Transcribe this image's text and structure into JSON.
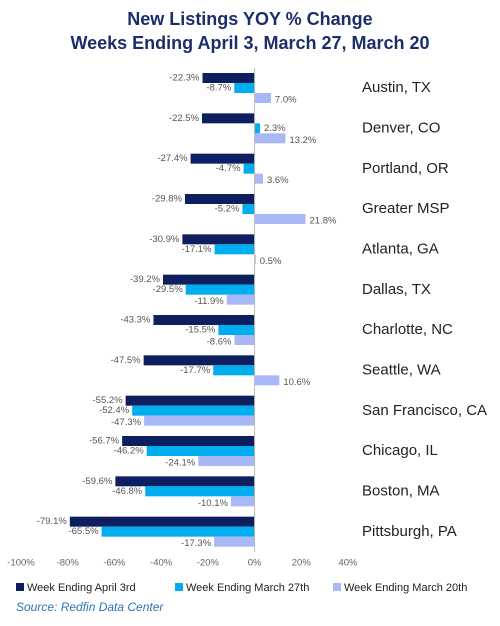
{
  "chart_data": {
    "type": "bar",
    "orientation": "horizontal",
    "title": "New Listings YOY % Change",
    "subtitle": "Weeks Ending April 3, March 27, March 20",
    "source": "Source: Redfin Data Center",
    "categories": [
      "Austin, TX",
      "Denver, CO",
      "Portland, OR",
      "Greater MSP",
      "Atlanta, GA",
      "Dallas, TX",
      "Charlotte, NC",
      "Seattle, WA",
      "San Francisco, CA",
      "Chicago, IL",
      "Boston, MA",
      "Pittsburgh, PA"
    ],
    "series": [
      {
        "name": "Week Ending April 3rd",
        "color": "#0d1f5e",
        "values": [
          -22.3,
          -22.5,
          -27.4,
          -29.8,
          -30.9,
          -39.2,
          -43.3,
          -47.5,
          -55.2,
          -56.7,
          -59.6,
          -79.1
        ],
        "value_labels": [
          "-22.3%",
          "-22.5%",
          "-27.4%",
          "-29.8%",
          "-30.9%",
          "-39.2%",
          "-43.3%",
          "-47.5%",
          "-55.2%",
          "-56.7%",
          "-59.6%",
          "-79.1%"
        ]
      },
      {
        "name": "Week Ending March 27th",
        "color": "#00aeef",
        "values": [
          -8.7,
          2.3,
          -4.7,
          -5.2,
          -17.1,
          -29.5,
          -15.5,
          -17.7,
          -52.4,
          -46.2,
          -46.8,
          -65.5
        ],
        "value_labels": [
          "-8.7%",
          "2.3%",
          "-4.7%",
          "-5.2%",
          "-17.1%",
          "-29.5%",
          "-15.5%",
          "-17.7%",
          "-52.4%",
          "-46.2%",
          "-46.8%",
          "-65.5%"
        ]
      },
      {
        "name": "Week Ending March 20th",
        "color": "#a8b8f6",
        "values": [
          7.0,
          13.2,
          3.6,
          21.8,
          0.5,
          -11.9,
          -8.6,
          10.6,
          -47.3,
          -24.1,
          -10.1,
          -17.3
        ],
        "value_labels": [
          "7.0%",
          "13.2%",
          "3.6%",
          "21.8%",
          "0.5%",
          "-11.9%",
          "-8.6%",
          "10.6%",
          "-47.3%",
          "-24.1%",
          "-10.1%",
          "-17.3%"
        ]
      }
    ],
    "xlim": [
      -100,
      40
    ],
    "xticks": [
      {
        "value": -100,
        "label": "-100%"
      },
      {
        "value": -80,
        "label": "-80%"
      },
      {
        "value": -60,
        "label": "-60%"
      },
      {
        "value": -40,
        "label": "-40%"
      },
      {
        "value": -20,
        "label": "-20%"
      },
      {
        "value": 0,
        "label": "0%"
      },
      {
        "value": 20,
        "label": "20%"
      },
      {
        "value": 40,
        "label": "40%"
      }
    ],
    "grid": false,
    "legend": "bottom"
  }
}
